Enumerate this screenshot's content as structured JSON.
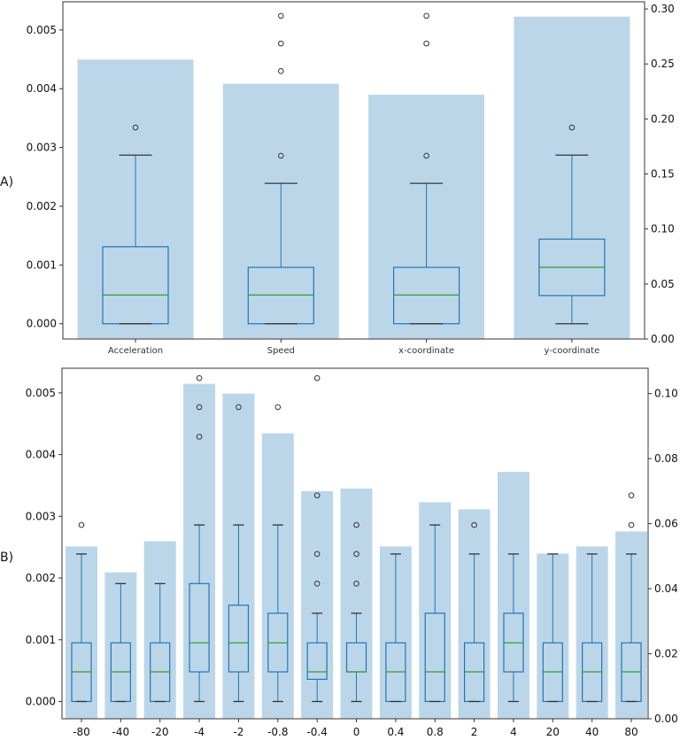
{
  "chart_data": [
    {
      "type": "bar+box",
      "panel_label": "A)",
      "categories": [
        "Acceleration",
        "Speed",
        "x-coordinate",
        "y-coordinate"
      ],
      "bar_values_right_axis": [
        0.254,
        0.232,
        0.222,
        0.293
      ],
      "boxes_left_axis": [
        {
          "whislo": 0,
          "q1": 0,
          "med": 0.00049,
          "q3": 0.00131,
          "whishi": 0.00287,
          "fliers": [
            0.00334
          ]
        },
        {
          "whislo": 0,
          "q1": 0,
          "med": 0.00049,
          "q3": 0.00096,
          "whishi": 0.00239,
          "fliers": [
            0.00286,
            0.0043,
            0.00477,
            0.00524
          ]
        },
        {
          "whislo": 0,
          "q1": 0,
          "med": 0.00049,
          "q3": 0.00096,
          "whishi": 0.00239,
          "fliers": [
            0.00286,
            0.00477,
            0.00524
          ]
        },
        {
          "whislo": 0,
          "q1": 0.00048,
          "med": 0.00096,
          "q3": 0.00144,
          "whishi": 0.00287,
          "fliers": [
            0.00334
          ]
        }
      ],
      "left_ticks": [
        "0.000",
        "0.001",
        "0.002",
        "0.003",
        "0.004",
        "0.005"
      ],
      "right_ticks": [
        "0.00",
        "0.05",
        "0.10",
        "0.15",
        "0.20",
        "0.25",
        "0.30"
      ],
      "left_ylim": [
        -0.00026,
        0.00548
      ],
      "right_ylim": [
        0,
        0.3065
      ],
      "grid": false
    },
    {
      "type": "bar+box",
      "panel_label": "B)",
      "categories": [
        "-80",
        "-40",
        "-20",
        "-4",
        "-2",
        "-0.8",
        "-0.4",
        "0",
        "0.4",
        "0.8",
        "2",
        "4",
        "20",
        "40",
        "80"
      ],
      "bar_values_right_axis": [
        0.053,
        0.045,
        0.0546,
        0.103,
        0.1,
        0.0878,
        0.07,
        0.0708,
        0.053,
        0.0666,
        0.0644,
        0.0759,
        0.0508,
        0.053,
        0.0576
      ],
      "boxes_left_axis": [
        {
          "whislo": 0,
          "q1": 0,
          "med": 0.00048,
          "q3": 0.00095,
          "whishi": 0.00239,
          "fliers": [
            0.00286
          ]
        },
        {
          "whislo": 0,
          "q1": 0,
          "med": 0.00048,
          "q3": 0.00095,
          "whishi": 0.00191,
          "fliers": []
        },
        {
          "whislo": 0,
          "q1": 0,
          "med": 0.00048,
          "q3": 0.00095,
          "whishi": 0.00191,
          "fliers": []
        },
        {
          "whislo": 0,
          "q1": 0.00048,
          "med": 0.00095,
          "q3": 0.00191,
          "whishi": 0.00286,
          "fliers": [
            0.00429,
            0.00477,
            0.00524
          ]
        },
        {
          "whislo": 0,
          "q1": 0.00048,
          "med": 0.00095,
          "q3": 0.00156,
          "whishi": 0.00286,
          "fliers": [
            0.00477
          ]
        },
        {
          "whislo": 0,
          "q1": 0.00048,
          "med": 0.00095,
          "q3": 0.00143,
          "whishi": 0.00286,
          "fliers": [
            0.00477
          ]
        },
        {
          "whislo": 0,
          "q1": 0.00036,
          "med": 0.00048,
          "q3": 0.00095,
          "whishi": 0.00143,
          "fliers": [
            0.00191,
            0.00239,
            0.00334,
            0.00524
          ]
        },
        {
          "whislo": 0,
          "q1": 0.00048,
          "med": 0.00048,
          "q3": 0.00095,
          "whishi": 0.00143,
          "fliers": [
            0.00191,
            0.00239,
            0.00286
          ]
        },
        {
          "whislo": 0,
          "q1": 0,
          "med": 0.00048,
          "q3": 0.00095,
          "whishi": 0.00239,
          "fliers": []
        },
        {
          "whislo": 0,
          "q1": 0,
          "med": 0.00048,
          "q3": 0.00143,
          "whishi": 0.00286,
          "fliers": []
        },
        {
          "whislo": 0,
          "q1": 0,
          "med": 0.00048,
          "q3": 0.00095,
          "whishi": 0.00239,
          "fliers": [
            0.00286
          ]
        },
        {
          "whislo": 0,
          "q1": 0.00048,
          "med": 0.00095,
          "q3": 0.00143,
          "whishi": 0.00239,
          "fliers": []
        },
        {
          "whislo": 0,
          "q1": 0,
          "med": 0.00048,
          "q3": 0.00095,
          "whishi": 0.00239,
          "fliers": []
        },
        {
          "whislo": 0,
          "q1": 0,
          "med": 0.00048,
          "q3": 0.00095,
          "whishi": 0.00239,
          "fliers": []
        },
        {
          "whislo": 0,
          "q1": 0,
          "med": 0.00048,
          "q3": 0.00095,
          "whishi": 0.00239,
          "fliers": [
            0.00286,
            0.00334
          ]
        }
      ],
      "left_ticks": [
        "0.000",
        "0.001",
        "0.002",
        "0.003",
        "0.004",
        "0.005"
      ],
      "right_ticks": [
        "0.00",
        "0.02",
        "0.04",
        "0.06",
        "0.08",
        "0.10"
      ],
      "left_ylim": [
        -0.00028,
        0.0054
      ],
      "right_ylim": [
        0,
        0.1078
      ],
      "grid": false
    }
  ],
  "colors": {
    "bar": "#bcd6e9",
    "box": "#1f77b4",
    "median": "#2ca02c",
    "cap": "#333333",
    "frame": "#555555"
  }
}
